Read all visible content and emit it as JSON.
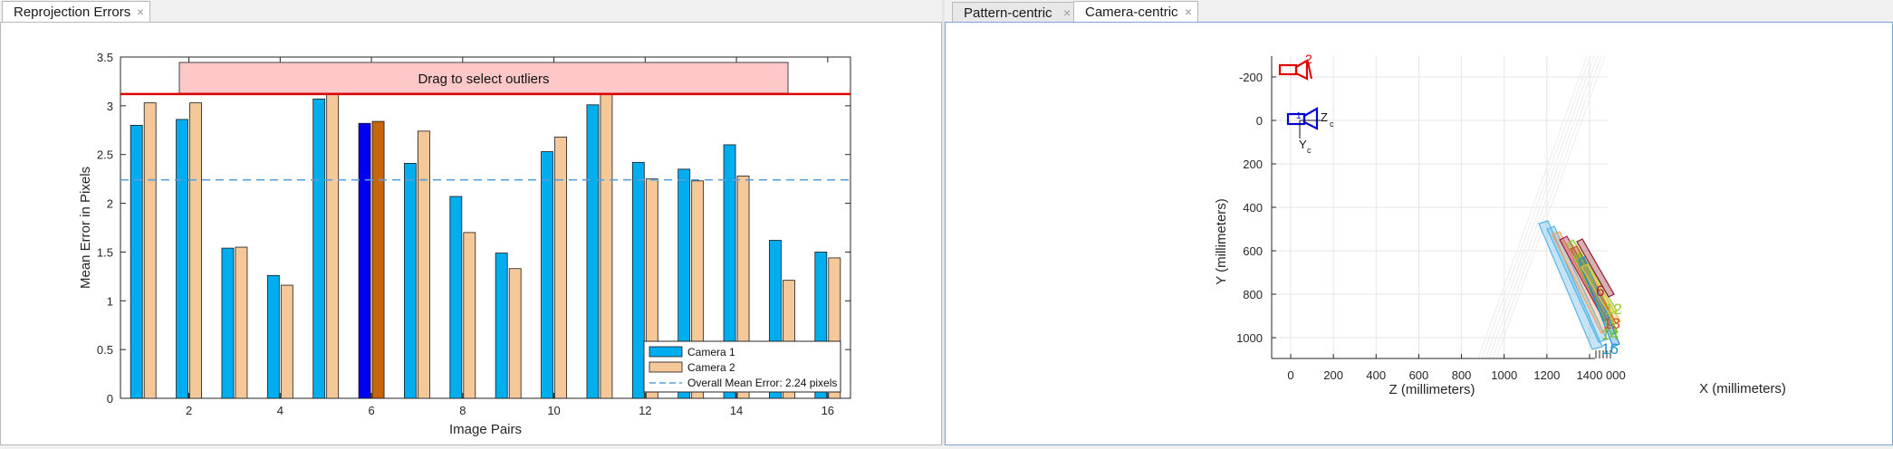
{
  "left_tabs": [
    {
      "label": "Reprojection Errors",
      "active": true
    }
  ],
  "right_tabs": [
    {
      "label": "Pattern-centric",
      "active": false
    },
    {
      "label": "Camera-centric",
      "active": true
    }
  ],
  "close_glyph": "×",
  "chart_data": [
    {
      "type": "bar",
      "xlabel": "Image Pairs",
      "ylabel": "Mean Error in Pixels",
      "ylim": [
        0,
        3.5
      ],
      "y_ticks": [
        "0",
        "0.5",
        "1",
        "1.5",
        "2",
        "2.5",
        "3",
        "3.5"
      ],
      "x_ticks": [
        "2",
        "4",
        "6",
        "8",
        "10",
        "12",
        "14",
        "16"
      ],
      "categories": [
        1,
        2,
        3,
        4,
        5,
        6,
        7,
        8,
        9,
        10,
        11,
        12,
        13,
        14,
        15,
        16
      ],
      "series": [
        {
          "name": "Camera 1",
          "color": "#00adef",
          "selected_color": "#0000ee",
          "values": [
            2.8,
            2.86,
            1.54,
            1.26,
            3.07,
            2.82,
            2.41,
            2.07,
            1.49,
            2.53,
            3.01,
            2.42,
            2.35,
            2.6,
            1.62,
            1.5
          ]
        },
        {
          "name": "Camera 2",
          "color": "#f5c89a",
          "selected_color": "#c8640a",
          "values": [
            3.03,
            3.03,
            1.55,
            1.16,
            3.12,
            2.84,
            2.74,
            1.7,
            1.33,
            2.68,
            3.12,
            2.25,
            2.23,
            2.28,
            1.21,
            1.44
          ]
        }
      ],
      "selected_pair": 6,
      "overall_mean": {
        "label": "Overall Mean Error: 2.24 pixels",
        "value": 2.24,
        "color": "#5aa0dc"
      },
      "threshold": {
        "value": 3.12,
        "color": "#e00000"
      },
      "drag_box": {
        "label": "Drag to select outliers",
        "fill": "#ffc8c8"
      },
      "legend_position": "bottom-right"
    },
    {
      "type": "scatter",
      "xlabel": "X (millimeters)",
      "zlabel": "Z (millimeters)",
      "ylabel": "Y (millimeters)",
      "y_ticks": [
        "-200",
        "0",
        "200",
        "400",
        "600",
        "800",
        "1000"
      ],
      "y_values": [
        -200,
        0,
        200,
        400,
        600,
        800,
        1000
      ],
      "z_ticks": [
        "0",
        "200",
        "400",
        "600",
        "800",
        "1000",
        "1200",
        "1400"
      ],
      "z_values": [
        0,
        200,
        400,
        600,
        800,
        1000,
        1200,
        1400
      ],
      "x_ticks_overlap": "000",
      "camera_labels": {
        "cam1": "1",
        "cam2": "2"
      },
      "camera_axes": {
        "zc": "Z",
        "yc": "Y",
        "sub": "c"
      },
      "pattern_labels": [
        {
          "text": "6",
          "color": "#a0204a"
        },
        {
          "text": "12",
          "color": "#9acd32"
        },
        {
          "text": "13",
          "color": "#d04a20"
        },
        {
          "text": "14",
          "color": "#78c02a"
        },
        {
          "text": "16",
          "color": "#1a90d0"
        }
      ]
    }
  ]
}
